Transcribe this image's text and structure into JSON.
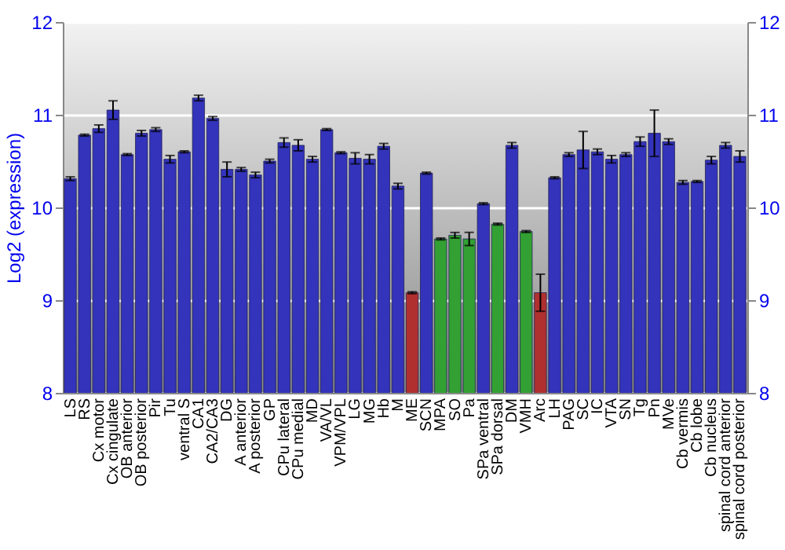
{
  "chart_data": {
    "type": "bar",
    "ylabel": "Log2 (expression)",
    "categories": [
      "LS",
      "RS",
      "Cx motor",
      "Cx cingulate",
      "OB anterior",
      "OB posterior",
      "Pir",
      "Tu",
      "ventral S",
      "CA1",
      "CA2/CA3",
      "DG",
      "A anterior",
      "A posterior",
      "GP",
      "CPu lateral",
      "CPu medial",
      "MD",
      "VA/VL",
      "VPM/VPL",
      "LG",
      "MG",
      "Hb",
      "M",
      "ME",
      "SCN",
      "MPA",
      "SO",
      "Pa",
      "SPa ventral",
      "SPa dorsal",
      "DM",
      "VMH",
      "Arc",
      "LH",
      "PAG",
      "SC",
      "IC",
      "VTA",
      "SN",
      "Tg",
      "Pn",
      "MVe",
      "Cb vermis",
      "Cb lobe",
      "Cb nucleus",
      "spinal cord anterior",
      "spinal cord posterior"
    ],
    "values": [
      10.31,
      10.78,
      10.85,
      11.05,
      10.57,
      10.8,
      10.84,
      10.52,
      10.6,
      11.18,
      10.96,
      10.41,
      10.41,
      10.35,
      10.5,
      10.7,
      10.67,
      10.52,
      10.84,
      10.59,
      10.53,
      10.52,
      10.66,
      10.23,
      9.08,
      10.37,
      9.66,
      9.7,
      9.66,
      10.04,
      9.82,
      10.67,
      9.74,
      9.08,
      10.32,
      10.57,
      10.62,
      10.6,
      10.52,
      10.57,
      10.71,
      10.8,
      10.71,
      10.27,
      10.28,
      10.51,
      10.67,
      10.55
    ],
    "errors": [
      0.02,
      0.01,
      0.04,
      0.1,
      0.01,
      0.03,
      0.02,
      0.04,
      0.01,
      0.03,
      0.02,
      0.08,
      0.02,
      0.03,
      0.02,
      0.05,
      0.06,
      0.03,
      0.01,
      0.01,
      0.06,
      0.05,
      0.03,
      0.03,
      0.01,
      0.01,
      0.01,
      0.03,
      0.07,
      0.01,
      0.01,
      0.03,
      0.01,
      0.2,
      0.01,
      0.02,
      0.2,
      0.03,
      0.04,
      0.02,
      0.05,
      0.25,
      0.03,
      0.02,
      0.01,
      0.04,
      0.03,
      0.06
    ],
    "colors": [
      "#3333bb",
      "#3333bb",
      "#3333bb",
      "#3333bb",
      "#3333bb",
      "#3333bb",
      "#3333bb",
      "#3333bb",
      "#3333bb",
      "#3333bb",
      "#3333bb",
      "#3333bb",
      "#3333bb",
      "#3333bb",
      "#3333bb",
      "#3333bb",
      "#3333bb",
      "#3333bb",
      "#3333bb",
      "#3333bb",
      "#3333bb",
      "#3333bb",
      "#3333bb",
      "#3333bb",
      "#b03030",
      "#3333bb",
      "#33a033",
      "#33a033",
      "#33a033",
      "#3333bb",
      "#33a033",
      "#3333bb",
      "#33a033",
      "#b03030",
      "#3333bb",
      "#3333bb",
      "#3333bb",
      "#3333bb",
      "#3333bb",
      "#3333bb",
      "#3333bb",
      "#3333bb",
      "#3333bb",
      "#3333bb",
      "#3333bb",
      "#3333bb",
      "#3333bb",
      "#3333bb"
    ],
    "ylim": [
      8,
      12
    ],
    "yticks": [
      8,
      9,
      10,
      11,
      12
    ],
    "y2lim": [
      8,
      12
    ],
    "y2ticks": [
      8,
      9,
      10,
      11,
      12
    ],
    "grid": "y"
  }
}
